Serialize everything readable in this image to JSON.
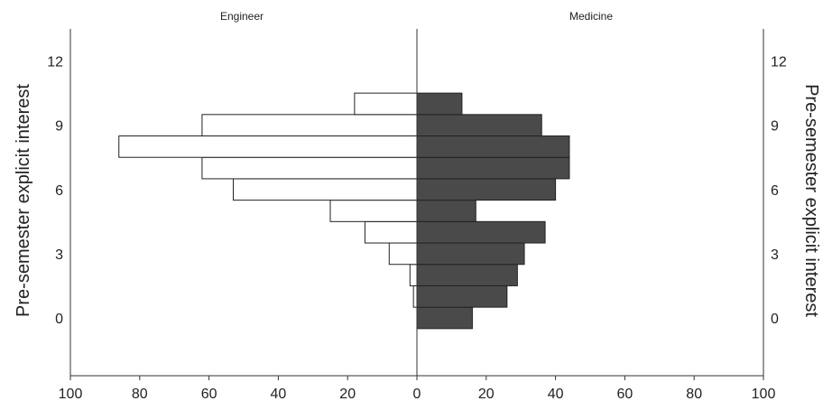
{
  "chart_data": {
    "type": "bar",
    "orientation": "horizontal",
    "layout": "back-to-back",
    "left_panel_title": "Engineer",
    "right_panel_title": "Medicine",
    "ylabel_left": "Pre-semester explicit interest",
    "ylabel_right": "Pre-semester explicit interest",
    "xlabel": "",
    "categories": [
      0,
      1,
      2,
      3,
      4,
      5,
      6,
      7,
      8,
      9,
      10
    ],
    "yticks": [
      0,
      3,
      6,
      9,
      12
    ],
    "ylim": [
      -2.7,
      13.5
    ],
    "xlim": [
      0,
      100
    ],
    "xticks": [
      100,
      80,
      60,
      40,
      20,
      0,
      20,
      40,
      60,
      80,
      100
    ],
    "grid": false,
    "series": [
      {
        "side": "left",
        "color": "#ffffff",
        "values": [
          0,
          1,
          2,
          8,
          15,
          25,
          53,
          62,
          86,
          62,
          18
        ]
      },
      {
        "side": "right",
        "color": "#4a4a4a",
        "values": [
          16,
          26,
          29,
          31,
          37,
          17,
          40,
          44,
          44,
          36,
          13
        ]
      }
    ]
  }
}
